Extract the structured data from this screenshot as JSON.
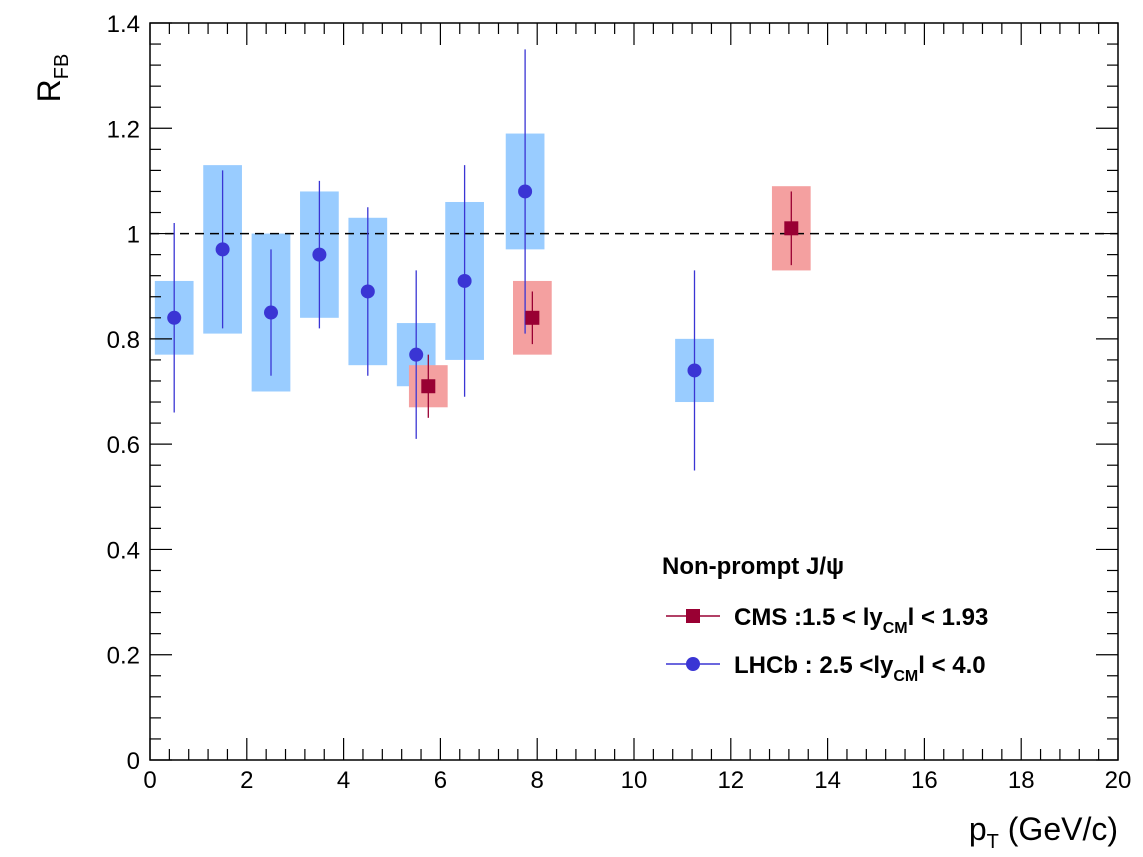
{
  "chart_data": {
    "type": "scatter",
    "xlabel": {
      "main": "p",
      "sub": "T",
      "rest": " (GeV/c)"
    },
    "ylabel": {
      "main": "R",
      "sub": "FB"
    },
    "xlim": [
      0,
      20
    ],
    "ylim": [
      0,
      1.4
    ],
    "x_ticks": [
      "0",
      "2",
      "4",
      "6",
      "8",
      "10",
      "12",
      "14",
      "16",
      "18",
      "20"
    ],
    "y_ticks": [
      "0",
      "0.2",
      "0.4",
      "0.6",
      "0.8",
      "1",
      "1.2",
      "1.4"
    ],
    "reference_line": {
      "y": 1.0,
      "style": "dashed"
    },
    "grid": false,
    "legend": {
      "placement": "bottom-right",
      "title": "Non-prompt J/ψ",
      "entries": [
        {
          "series": "cms",
          "p1": "CMS :1.5 < ly",
          "sub": "CM",
          "p2": "l < 1.93"
        },
        {
          "series": "lhcb",
          "p1": "LHCb : 2.5 <ly",
          "sub": "CM",
          "p2": "l < 4.0"
        }
      ]
    },
    "series": [
      {
        "key": "lhcb",
        "marker": "circle",
        "color": "#3a35d4",
        "band_color": "#99ccff",
        "points": [
          {
            "x": 0.5,
            "y": 0.84,
            "y_lo": 0.66,
            "y_hi": 1.02,
            "x_lo": 0.1,
            "x_hi": 0.9,
            "sys_lo": 0.77,
            "sys_hi": 0.91
          },
          {
            "x": 1.5,
            "y": 0.97,
            "y_lo": 0.82,
            "y_hi": 1.12,
            "x_lo": 1.1,
            "x_hi": 1.9,
            "sys_lo": 0.81,
            "sys_hi": 1.13
          },
          {
            "x": 2.5,
            "y": 0.85,
            "y_lo": 0.73,
            "y_hi": 0.97,
            "x_lo": 2.1,
            "x_hi": 2.9,
            "sys_lo": 0.7,
            "sys_hi": 1.0
          },
          {
            "x": 3.5,
            "y": 0.96,
            "y_lo": 0.82,
            "y_hi": 1.1,
            "x_lo": 3.1,
            "x_hi": 3.9,
            "sys_lo": 0.84,
            "sys_hi": 1.08
          },
          {
            "x": 4.5,
            "y": 0.89,
            "y_lo": 0.73,
            "y_hi": 1.05,
            "x_lo": 4.1,
            "x_hi": 4.9,
            "sys_lo": 0.75,
            "sys_hi": 1.03
          },
          {
            "x": 5.5,
            "y": 0.77,
            "y_lo": 0.61,
            "y_hi": 0.93,
            "x_lo": 5.1,
            "x_hi": 5.9,
            "sys_lo": 0.71,
            "sys_hi": 0.83
          },
          {
            "x": 6.5,
            "y": 0.91,
            "y_lo": 0.69,
            "y_hi": 1.13,
            "x_lo": 6.1,
            "x_hi": 6.9,
            "sys_lo": 0.76,
            "sys_hi": 1.06
          },
          {
            "x": 7.75,
            "y": 1.08,
            "y_lo": 0.81,
            "y_hi": 1.35,
            "x_lo": 7.35,
            "x_hi": 8.15,
            "sys_lo": 0.97,
            "sys_hi": 1.19
          },
          {
            "x": 11.25,
            "y": 0.74,
            "y_lo": 0.55,
            "y_hi": 0.93,
            "x_lo": 10.85,
            "x_hi": 11.65,
            "sys_lo": 0.68,
            "sys_hi": 0.8
          }
        ]
      },
      {
        "key": "cms",
        "marker": "square",
        "color": "#990033",
        "band_color": "#f4a0a0",
        "points": [
          {
            "x": 5.75,
            "y": 0.71,
            "y_lo": 0.65,
            "y_hi": 0.77,
            "x_lo": 5.35,
            "x_hi": 6.15,
            "sys_lo": 0.67,
            "sys_hi": 0.75
          },
          {
            "x": 7.9,
            "y": 0.84,
            "y_lo": 0.79,
            "y_hi": 0.89,
            "x_lo": 7.5,
            "x_hi": 8.3,
            "sys_lo": 0.77,
            "sys_hi": 0.91
          },
          {
            "x": 13.25,
            "y": 1.01,
            "y_lo": 0.94,
            "y_hi": 1.08,
            "x_lo": 12.85,
            "x_hi": 13.65,
            "sys_lo": 0.93,
            "sys_hi": 1.09
          }
        ]
      }
    ]
  }
}
